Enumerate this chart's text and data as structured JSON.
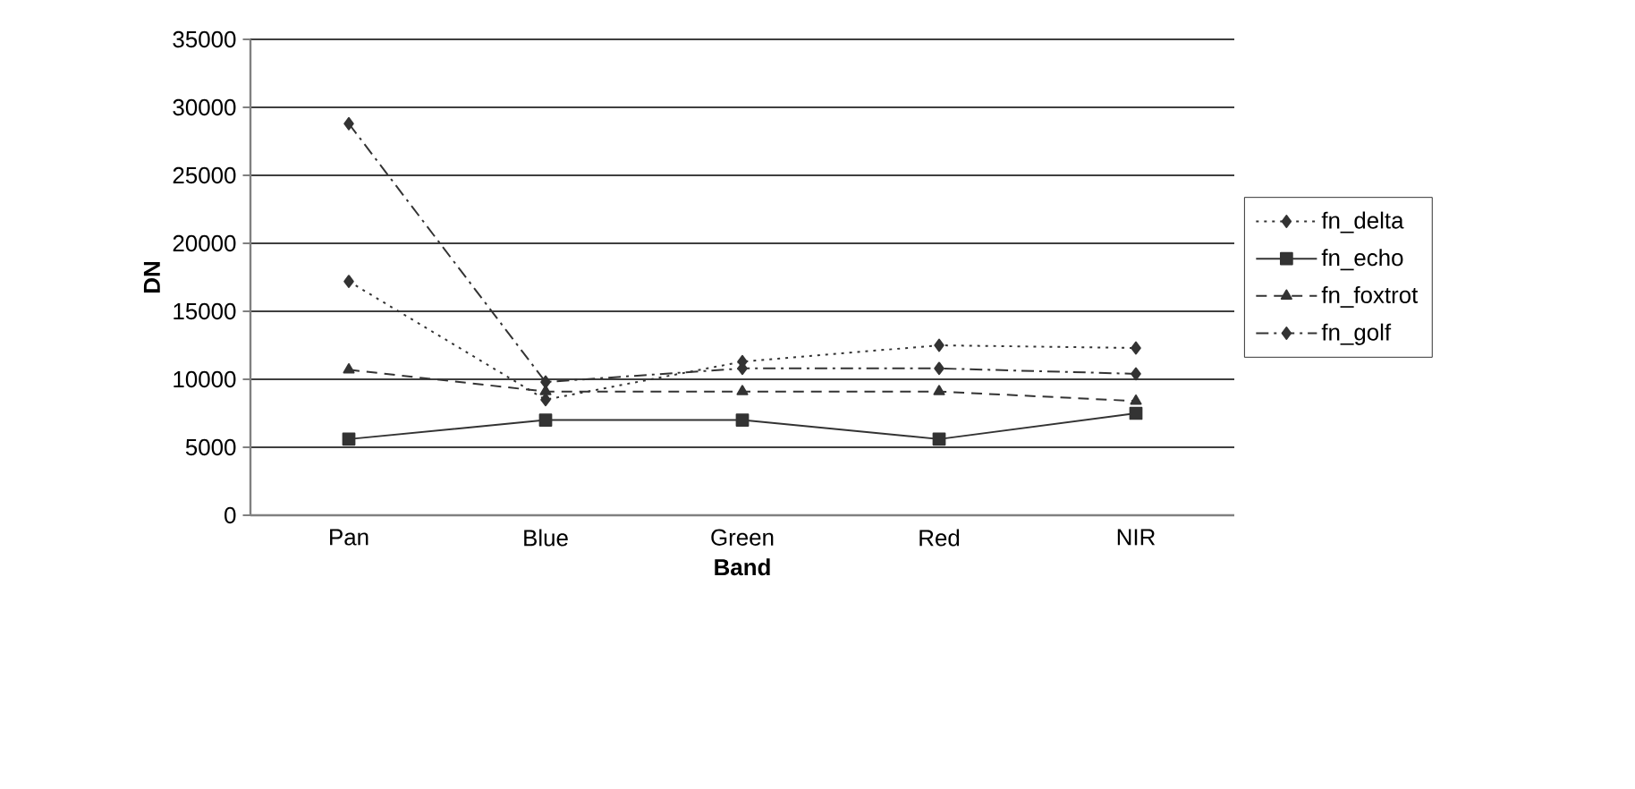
{
  "chart_data": {
    "type": "line",
    "xlabel": "Band",
    "ylabel": "DN",
    "categories": [
      "Pan",
      "Blue",
      "Green",
      "Red",
      "NIR"
    ],
    "ylim": [
      0,
      35000
    ],
    "yticks": [
      0,
      5000,
      10000,
      15000,
      20000,
      25000,
      30000,
      35000
    ],
    "grid": "y",
    "legend": "right",
    "series": [
      {
        "name": "fn_delta",
        "color": "#333333",
        "marker": "diamond",
        "line_style": "dotted",
        "values": [
          17200,
          8500,
          11300,
          12500,
          12300
        ]
      },
      {
        "name": "fn_echo",
        "color": "#333333",
        "marker": "square",
        "line_style": "solid",
        "values": [
          5600,
          7000,
          7000,
          5600,
          7500
        ]
      },
      {
        "name": "fn_foxtrot",
        "color": "#333333",
        "marker": "triangle",
        "line_style": "dashed",
        "values": [
          10700,
          9100,
          9100,
          9100,
          8400
        ]
      },
      {
        "name": "fn_golf",
        "color": "#333333",
        "marker": "diamond",
        "line_style": "dashdotted",
        "values": [
          28800,
          9800,
          10800,
          10800,
          10400
        ]
      }
    ]
  }
}
